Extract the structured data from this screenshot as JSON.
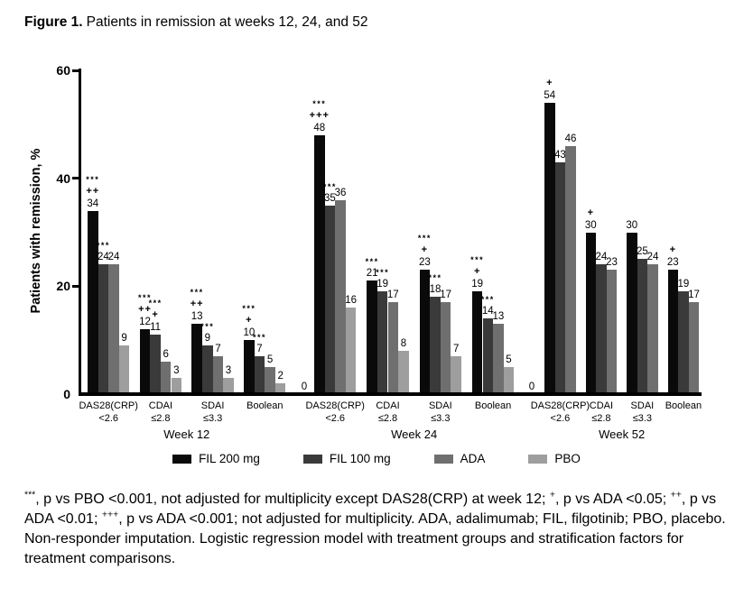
{
  "title": {
    "prefix": "Figure 1.",
    "text": "Patients in remission at weeks 12, 24, and 52"
  },
  "chart_data": {
    "type": "bar",
    "title": "Figure 1. Patients in remission at weeks 12, 24, and 52",
    "xlabel": "",
    "ylabel": "Patients with remission, %",
    "ylim": [
      0,
      60
    ],
    "yticks": [
      0,
      20,
      40,
      60
    ],
    "grid": false,
    "legend_position": "bottom",
    "series": [
      {
        "name": "FIL 200 mg",
        "color": "#0a0a0a"
      },
      {
        "name": "FIL 100 mg",
        "color": "#3a3a3a"
      },
      {
        "name": "ADA",
        "color": "#6f6f6f"
      },
      {
        "name": "PBO",
        "color": "#9e9e9e"
      }
    ],
    "sections": [
      {
        "label": "Week 12",
        "gap_zero_label": "0",
        "groups": [
          {
            "category_lines": [
              "DAS28(CRP)",
              "<2.6"
            ],
            "bars": [
              {
                "series": "FIL 200 mg",
                "value": 34,
                "marks": [
                  "***",
                  "++"
                ]
              },
              {
                "series": "FIL 100 mg",
                "value": 24,
                "marks": [
                  "***"
                ]
              },
              {
                "series": "ADA",
                "value": 24,
                "marks": []
              },
              {
                "series": "PBO",
                "value": 9,
                "marks": []
              }
            ]
          },
          {
            "category_lines": [
              "CDAI",
              "≤2.8"
            ],
            "bars": [
              {
                "series": "FIL 200 mg",
                "value": 12,
                "marks": [
                  "***",
                  "++"
                ]
              },
              {
                "series": "FIL 100 mg",
                "value": 11,
                "marks": [
                  "***",
                  "+"
                ]
              },
              {
                "series": "ADA",
                "value": 6,
                "marks": []
              },
              {
                "series": "PBO",
                "value": 3,
                "marks": []
              }
            ]
          },
          {
            "category_lines": [
              "SDAI",
              "≤3.3"
            ],
            "bars": [
              {
                "series": "FIL 200 mg",
                "value": 13,
                "marks": [
                  "***",
                  "++"
                ]
              },
              {
                "series": "FIL 100 mg",
                "value": 9,
                "marks": [
                  "***"
                ]
              },
              {
                "series": "ADA",
                "value": 7,
                "marks": []
              },
              {
                "series": "PBO",
                "value": 3,
                "marks": []
              }
            ]
          },
          {
            "category_lines": [
              "Boolean"
            ],
            "bars": [
              {
                "series": "FIL 200 mg",
                "value": 10,
                "marks": [
                  "***",
                  "+"
                ]
              },
              {
                "series": "FIL 100 mg",
                "value": 7,
                "marks": [
                  "***"
                ]
              },
              {
                "series": "ADA",
                "value": 5,
                "marks": []
              },
              {
                "series": "PBO",
                "value": 2,
                "marks": []
              }
            ]
          }
        ]
      },
      {
        "label": "Week 24",
        "gap_zero_label": "0",
        "groups": [
          {
            "category_lines": [
              "DAS28(CRP)",
              "<2.6"
            ],
            "bars": [
              {
                "series": "FIL 200 mg",
                "value": 48,
                "marks": [
                  "***",
                  "+++"
                ]
              },
              {
                "series": "FIL 100 mg",
                "value": 35,
                "marks": [
                  "***"
                ]
              },
              {
                "series": "ADA",
                "value": 36,
                "marks": []
              },
              {
                "series": "PBO",
                "value": 16,
                "marks": []
              }
            ]
          },
          {
            "category_lines": [
              "CDAI",
              "≤2.8"
            ],
            "bars": [
              {
                "series": "FIL 200 mg",
                "value": 21,
                "marks": [
                  "***"
                ]
              },
              {
                "series": "FIL 100 mg",
                "value": 19,
                "marks": [
                  "***"
                ]
              },
              {
                "series": "ADA",
                "value": 17,
                "marks": []
              },
              {
                "series": "PBO",
                "value": 8,
                "marks": []
              }
            ]
          },
          {
            "category_lines": [
              "SDAI",
              "≤3.3"
            ],
            "bars": [
              {
                "series": "FIL 200 mg",
                "value": 23,
                "marks": [
                  "***",
                  "+"
                ]
              },
              {
                "series": "FIL 100 mg",
                "value": 18,
                "marks": [
                  "***"
                ]
              },
              {
                "series": "ADA",
                "value": 17,
                "marks": []
              },
              {
                "series": "PBO",
                "value": 7,
                "marks": []
              }
            ]
          },
          {
            "category_lines": [
              "Boolean"
            ],
            "bars": [
              {
                "series": "FIL 200 mg",
                "value": 19,
                "marks": [
                  "***",
                  "+"
                ]
              },
              {
                "series": "FIL 100 mg",
                "value": 14,
                "marks": [
                  "***"
                ]
              },
              {
                "series": "ADA",
                "value": 13,
                "marks": []
              },
              {
                "series": "PBO",
                "value": 5,
                "marks": []
              }
            ]
          }
        ]
      },
      {
        "label": "Week 52",
        "gap_zero_label": null,
        "groups": [
          {
            "category_lines": [
              "DAS28(CRP)",
              "<2.6"
            ],
            "bars": [
              {
                "series": "FIL 200 mg",
                "value": 54,
                "marks": [
                  "+"
                ]
              },
              {
                "series": "FIL 100 mg",
                "value": 43,
                "marks": []
              },
              {
                "series": "ADA",
                "value": 46,
                "marks": []
              }
            ]
          },
          {
            "category_lines": [
              "CDAI",
              "≤2.8"
            ],
            "bars": [
              {
                "series": "FIL 200 mg",
                "value": 30,
                "marks": [
                  "+"
                ]
              },
              {
                "series": "FIL 100 mg",
                "value": 24,
                "marks": []
              },
              {
                "series": "ADA",
                "value": 23,
                "marks": []
              }
            ]
          },
          {
            "category_lines": [
              "SDAI",
              "≤3.3"
            ],
            "bars": [
              {
                "series": "FIL 200 mg",
                "value": 30,
                "marks": []
              },
              {
                "series": "FIL 100 mg",
                "value": 25,
                "marks": []
              },
              {
                "series": "ADA",
                "value": 24,
                "marks": []
              }
            ]
          },
          {
            "category_lines": [
              "Boolean"
            ],
            "bars": [
              {
                "series": "FIL 200 mg",
                "value": 23,
                "marks": [
                  "+"
                ]
              },
              {
                "series": "FIL 100 mg",
                "value": 19,
                "marks": []
              },
              {
                "series": "ADA",
                "value": 17,
                "marks": []
              }
            ]
          }
        ]
      }
    ]
  },
  "footnotes": {
    "para1": [
      {
        "t": "***",
        "sup": true
      },
      {
        "t": ", p vs PBO <0.001, not adjusted for multiplicity except DAS28(CRP) at week 12; ",
        "sup": false
      },
      {
        "t": "+",
        "sup": true
      },
      {
        "t": ", p vs ADA <0.05; ",
        "sup": false
      },
      {
        "t": "++",
        "sup": true
      },
      {
        "t": ", p vs ADA <0.01; ",
        "sup": false
      },
      {
        "t": "+++",
        "sup": true
      },
      {
        "t": ", p vs ADA <0.001; not adjusted for multiplicity. ADA, adalimumab; FIL, filgotinib; PBO, placebo.",
        "sup": false
      }
    ],
    "para2": [
      {
        "t": "Non-responder imputation. Logistic regression model with treatment groups and stratification factors for treatment comparisons.",
        "sup": false
      }
    ]
  }
}
